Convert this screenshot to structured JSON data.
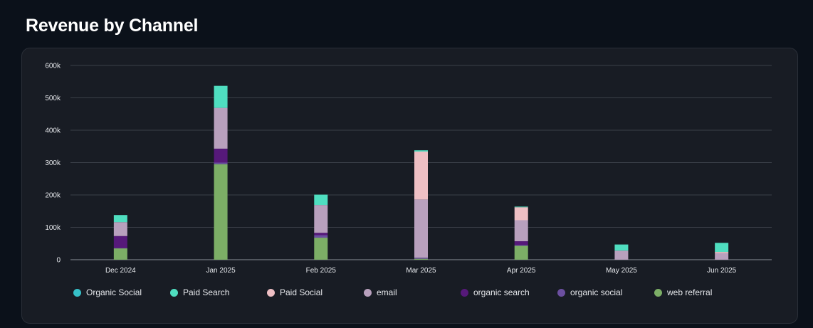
{
  "page": {
    "title": "Revenue by Channel"
  },
  "chart_data": {
    "type": "bar",
    "stacked": true,
    "title": "",
    "xlabel": "",
    "ylabel": "",
    "ylim": [
      0,
      600000
    ],
    "yticks": [
      0,
      100000,
      200000,
      300000,
      400000,
      500000,
      600000
    ],
    "ytick_labels": [
      "0",
      "100k",
      "200k",
      "300k",
      "400k",
      "500k",
      "600k"
    ],
    "grid": true,
    "legend_position": "bottom",
    "categories": [
      "Dec 2024",
      "Jan 2025",
      "Feb 2025",
      "Mar 2025",
      "Apr 2025",
      "May 2025",
      "Jun 2025"
    ],
    "series": [
      {
        "name": "web referral",
        "color": "#7cae66",
        "values": [
          35000,
          295000,
          68000,
          3000,
          43000,
          0,
          0
        ]
      },
      {
        "name": "organic social",
        "color": "#6b4fa0",
        "values": [
          1000,
          5000,
          8000,
          3000,
          2000,
          0,
          0
        ]
      },
      {
        "name": "organic search",
        "color": "#56197a",
        "values": [
          37000,
          43000,
          7000,
          0,
          12000,
          0,
          0
        ]
      },
      {
        "name": "email",
        "color": "#b8a0bd",
        "values": [
          43000,
          126000,
          86000,
          180000,
          65000,
          28000,
          20000
        ]
      },
      {
        "name": "Paid Social",
        "color": "#eebfc4",
        "values": [
          0,
          0,
          0,
          148000,
          40000,
          0,
          4000
        ]
      },
      {
        "name": "Paid Search",
        "color": "#4fdec0",
        "values": [
          22000,
          68000,
          32000,
          4000,
          2000,
          19000,
          28000
        ]
      },
      {
        "name": "Organic Social",
        "color": "#36c0c8",
        "values": [
          0,
          0,
          0,
          0,
          0,
          0,
          0
        ]
      }
    ],
    "legend": [
      {
        "name": "Organic Social",
        "color": "#36c0c8"
      },
      {
        "name": "Paid Search",
        "color": "#4fdec0"
      },
      {
        "name": "Paid Social",
        "color": "#eebfc4"
      },
      {
        "name": "email",
        "color": "#b8a0bd"
      },
      {
        "name": "organic search",
        "color": "#56197a"
      },
      {
        "name": "organic social",
        "color": "#6b4fa0"
      },
      {
        "name": "web referral",
        "color": "#7cae66"
      }
    ]
  }
}
